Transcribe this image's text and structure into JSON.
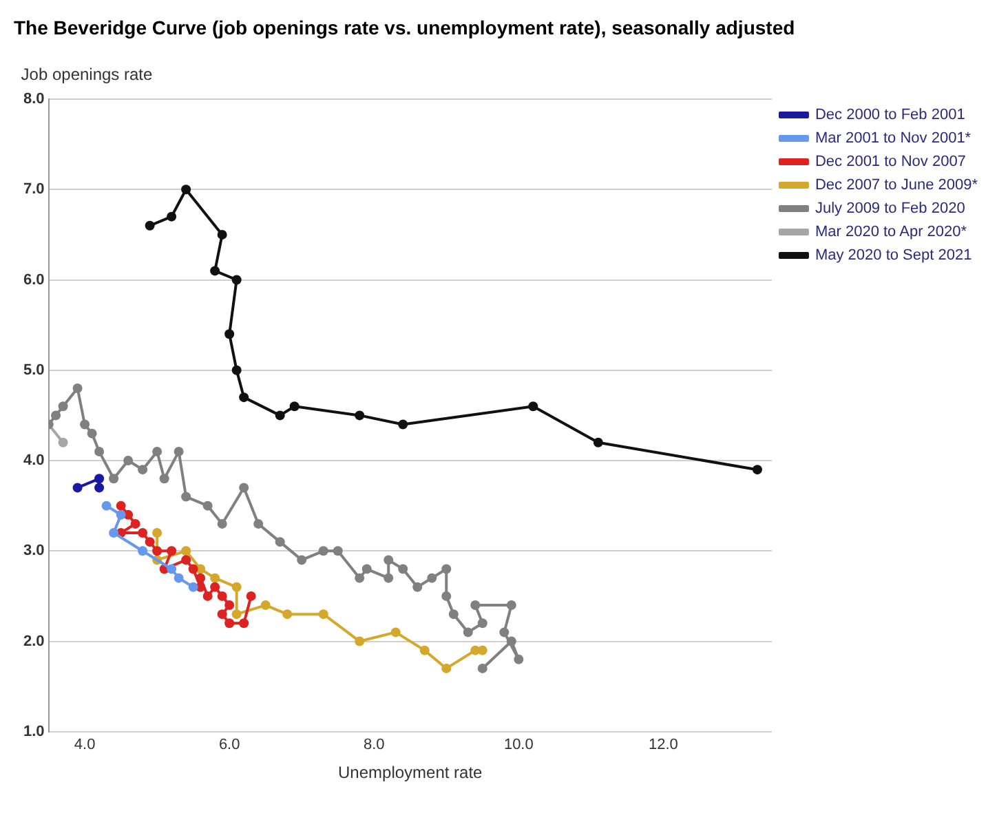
{
  "chart_data": {
    "type": "line",
    "title": "The Beveridge Curve (job openings rate vs. unemployment rate), seasonally adjusted",
    "xlabel": "Unemployment rate",
    "ylabel": "Job openings rate",
    "xlim": [
      3.5,
      13.5
    ],
    "xticks": [
      {
        "value": 4,
        "label": "4.0"
      },
      {
        "value": 6,
        "label": "6.0"
      },
      {
        "value": 8,
        "label": "8.0"
      },
      {
        "value": 10,
        "label": "10.0"
      },
      {
        "value": 12,
        "label": "12.0"
      }
    ],
    "ylim": [
      1,
      8
    ],
    "yticks": [
      {
        "value": 1,
        "label": "1.0"
      },
      {
        "value": 2,
        "label": "2.0"
      },
      {
        "value": 3,
        "label": "3.0"
      },
      {
        "value": 4,
        "label": "4.0"
      },
      {
        "value": 5,
        "label": "5.0"
      },
      {
        "value": 6,
        "label": "6.0"
      },
      {
        "value": 7,
        "label": "7.0"
      },
      {
        "value": 8,
        "label": "8.0"
      }
    ],
    "grid": "y",
    "legend": "top right",
    "marker": "circle",
    "line_style": "solid",
    "series": [
      {
        "name": "Dec 2000 to Feb 2001",
        "color": "#1a1aa0",
        "x": [
          3.9,
          4.2,
          4.2
        ],
        "values": [
          3.7,
          3.8,
          3.7
        ]
      },
      {
        "name": "Mar 2001 to Nov 2001*",
        "color": "#6699ee",
        "x": [
          4.3,
          4.5,
          4.4,
          4.8,
          5.2,
          5.3,
          5.5
        ],
        "values": [
          3.5,
          3.4,
          3.2,
          3.0,
          2.8,
          2.7,
          2.6
        ]
      },
      {
        "name": "Dec 2001 to Nov 2007",
        "color": "#dd2222",
        "x": [
          4.5,
          4.6,
          4.7,
          4.5,
          4.8,
          4.9,
          5.0,
          5.2,
          5.1,
          5.4,
          5.5,
          5.6,
          5.6,
          5.7,
          5.8,
          5.9,
          6.0,
          5.9,
          6.0,
          6.2,
          6.3
        ],
        "values": [
          3.5,
          3.4,
          3.3,
          3.2,
          3.2,
          3.1,
          3.0,
          3.0,
          2.8,
          2.9,
          2.8,
          2.6,
          2.7,
          2.5,
          2.6,
          2.5,
          2.4,
          2.3,
          2.2,
          2.2,
          2.5
        ]
      },
      {
        "name": "Dec 2007 to June 2009*",
        "color": "#d4a82a",
        "x": [
          5.0,
          5.0,
          5.4,
          5.6,
          5.8,
          6.1,
          6.1,
          6.5,
          6.8,
          7.3,
          7.8,
          8.3,
          8.7,
          9.0,
          9.4,
          9.5
        ],
        "values": [
          3.2,
          2.9,
          3.0,
          2.8,
          2.7,
          2.6,
          2.3,
          2.4,
          2.3,
          2.3,
          2.0,
          2.1,
          1.9,
          1.7,
          1.9,
          1.9
        ]
      },
      {
        "name": "July 2009 to Feb 2020",
        "color": "#808080",
        "x": [
          9.5,
          9.9,
          10.0,
          9.8,
          9.9,
          9.4,
          9.5,
          9.3,
          9.1,
          9.0,
          9.0,
          8.8,
          8.6,
          8.4,
          8.2,
          8.2,
          7.9,
          7.8,
          7.5,
          7.3,
          7.0,
          6.7,
          6.4,
          6.2,
          5.9,
          5.7,
          5.4,
          5.3,
          5.1,
          5.0,
          4.8,
          4.6,
          4.4,
          4.2,
          4.1,
          4.0,
          3.9,
          3.7,
          3.6,
          3.5
        ],
        "values": [
          1.7,
          2.0,
          1.8,
          2.1,
          2.4,
          2.4,
          2.2,
          2.1,
          2.3,
          2.5,
          2.8,
          2.7,
          2.6,
          2.8,
          2.9,
          2.7,
          2.8,
          2.7,
          3.0,
          3.0,
          2.9,
          3.1,
          3.3,
          3.7,
          3.3,
          3.5,
          3.6,
          4.1,
          3.8,
          4.1,
          3.9,
          4.0,
          3.8,
          4.1,
          4.3,
          4.4,
          4.8,
          4.6,
          4.5,
          4.4
        ]
      },
      {
        "name": "Mar 2020 to Apr 2020*",
        "color": "#a6a6a6",
        "x": [
          3.5,
          3.7
        ],
        "values": [
          4.4,
          4.2
        ]
      },
      {
        "name": "May 2020 to Sept 2021",
        "color": "#111111",
        "x": [
          13.3,
          11.1,
          10.2,
          8.4,
          7.8,
          6.9,
          6.7,
          6.2,
          6.1,
          6.0,
          6.1,
          5.8,
          5.9,
          5.4,
          5.2,
          4.9
        ],
        "values": [
          3.9,
          4.2,
          4.6,
          4.4,
          4.5,
          4.6,
          4.5,
          4.7,
          5.0,
          5.4,
          6.0,
          6.1,
          6.5,
          7.0,
          6.7,
          6.6
        ]
      }
    ]
  }
}
